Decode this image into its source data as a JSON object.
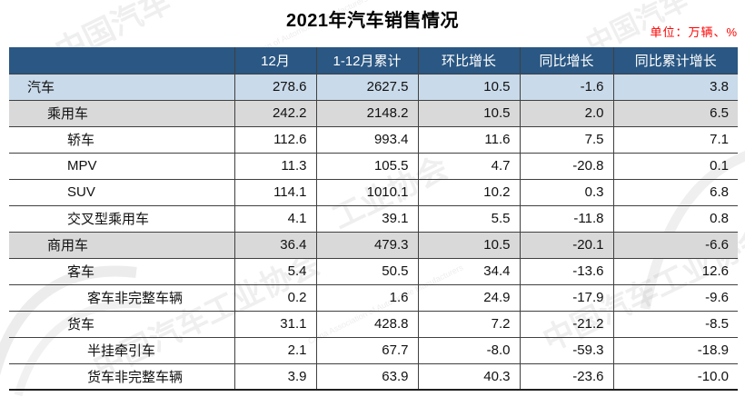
{
  "chart_data": {
    "type": "table",
    "title": "2021年汽车销售情况",
    "unit_note": "单位：万辆、%",
    "columns": [
      "",
      "12月",
      "1-12月累计",
      "环比增长",
      "同比增长",
      "同比累计增长"
    ],
    "rows": [
      {
        "label": "汽车",
        "indent": 0,
        "style": "highlight",
        "values": [
          "278.6",
          "2627.5",
          "10.5",
          "-1.6",
          "3.8"
        ]
      },
      {
        "label": "乘用车",
        "indent": 1,
        "style": "group",
        "values": [
          "242.2",
          "2148.2",
          "10.5",
          "2.0",
          "6.5"
        ]
      },
      {
        "label": "轿车",
        "indent": 2,
        "style": "plain",
        "values": [
          "112.6",
          "993.4",
          "11.6",
          "7.5",
          "7.1"
        ]
      },
      {
        "label": "MPV",
        "indent": 2,
        "style": "plain",
        "values": [
          "11.3",
          "105.5",
          "4.7",
          "-20.8",
          "0.1"
        ]
      },
      {
        "label": "SUV",
        "indent": 2,
        "style": "plain",
        "values": [
          "114.1",
          "1010.1",
          "10.2",
          "0.3",
          "6.8"
        ]
      },
      {
        "label": "交叉型乘用车",
        "indent": 2,
        "style": "plain",
        "values": [
          "4.1",
          "39.1",
          "5.5",
          "-11.8",
          "0.8"
        ]
      },
      {
        "label": "商用车",
        "indent": 1,
        "style": "group",
        "values": [
          "36.4",
          "479.3",
          "10.5",
          "-20.1",
          "-6.6"
        ]
      },
      {
        "label": "客车",
        "indent": 2,
        "style": "plain",
        "values": [
          "5.4",
          "50.5",
          "34.4",
          "-13.6",
          "12.6"
        ]
      },
      {
        "label": "客车非完整车辆",
        "indent": 3,
        "style": "plain",
        "values": [
          "0.2",
          "1.6",
          "24.9",
          "-17.9",
          "-9.6"
        ]
      },
      {
        "label": "货车",
        "indent": 2,
        "style": "plain",
        "values": [
          "31.1",
          "428.8",
          "7.2",
          "-21.2",
          "-8.5"
        ]
      },
      {
        "label": "半挂牵引车",
        "indent": 3,
        "style": "plain",
        "values": [
          "2.1",
          "67.7",
          "-8.0",
          "-59.3",
          "-18.9"
        ]
      },
      {
        "label": "货车非完整车辆",
        "indent": 3,
        "style": "plain",
        "values": [
          "3.9",
          "63.9",
          "40.3",
          "-23.6",
          "-10.0"
        ]
      }
    ]
  },
  "colors": {
    "header_bg": "#2a5783",
    "highlight_bg": "#c9daea",
    "group_bg": "#d9d9d9",
    "border_color": "#404040",
    "unit_color": "#ff0000"
  },
  "watermarks": {
    "cn_short": "中国汽车",
    "cn_mid": "工业协会",
    "cn_full": "中国汽车工业协会",
    "en_full": "China Association of Automobile Manufacturers"
  }
}
